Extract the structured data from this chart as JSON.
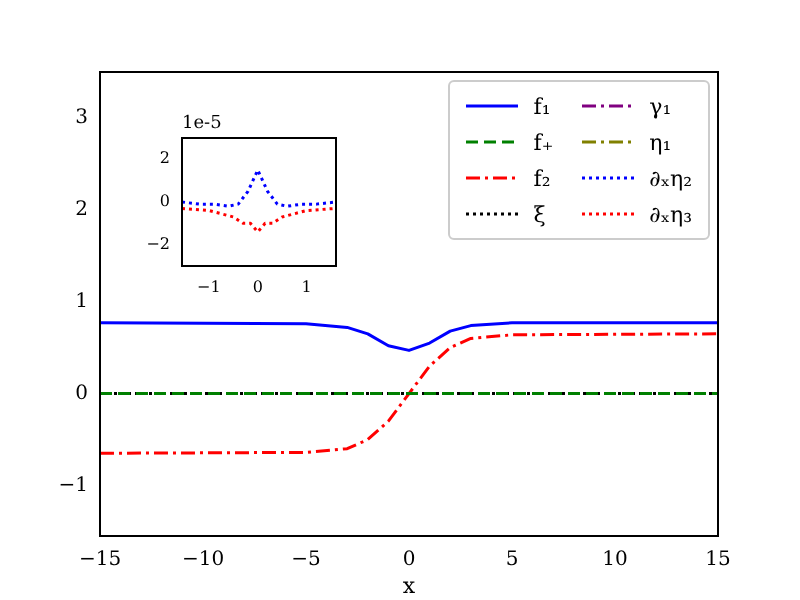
{
  "chart_data": [
    {
      "type": "line",
      "xlabel": "x",
      "xlim": [
        -15,
        15
      ],
      "xticks": [
        -15,
        -10,
        -5,
        0,
        5,
        10,
        15
      ],
      "ylim": [
        -1.55,
        3.5
      ],
      "yticks": [
        -1,
        0,
        1,
        2,
        3
      ],
      "grid": false,
      "legend": "top right",
      "marker": "none",
      "series": [
        {
          "name": "f₁",
          "color": "#0000ff",
          "line_style": "solid",
          "x": [
            -15,
            -5,
            -3,
            -2,
            -1,
            0,
            1,
            2,
            3,
            5,
            15
          ],
          "values": [
            0.77,
            0.76,
            0.72,
            0.65,
            0.52,
            0.47,
            0.55,
            0.68,
            0.74,
            0.77,
            0.77
          ]
        },
        {
          "name": "f₊",
          "color": "#008000",
          "line_style": "dashed",
          "x": [
            -15,
            15
          ],
          "values": [
            0,
            0
          ]
        },
        {
          "name": "f₂",
          "color": "#ff0000",
          "line_style": "dashdot",
          "x": [
            -15,
            -5,
            -3,
            -2,
            -1,
            0,
            1,
            2,
            3,
            5,
            15
          ],
          "values": [
            -0.65,
            -0.64,
            -0.6,
            -0.5,
            -0.3,
            0,
            0.3,
            0.5,
            0.6,
            0.64,
            0.65
          ]
        },
        {
          "name": "ξ",
          "color": "#000000",
          "line_style": "dotted",
          "x": [
            -15,
            15
          ],
          "values": [
            0,
            0
          ]
        },
        {
          "name": "γ₁",
          "color": "#800080",
          "line_style": "dashdot",
          "values": [
            null
          ]
        },
        {
          "name": "η₁",
          "color": "#808000",
          "line_style": "dashdot",
          "values": [
            null
          ]
        },
        {
          "name": "∂ₓη₂",
          "color": "#0000ff",
          "line_style": "dotted",
          "values": [
            null
          ]
        },
        {
          "name": "∂ₓη₃",
          "color": "#ff0000",
          "line_style": "dotted",
          "values": [
            null
          ]
        }
      ]
    },
    {
      "type": "line",
      "xlim": [
        -1.55,
        1.6
      ],
      "xticks": [
        -1,
        0,
        1
      ],
      "ylim": [
        -3,
        3
      ],
      "yticks": [
        -2,
        0,
        2
      ],
      "grid": false,
      "marker": "none",
      "annotations": [
        "1e-5"
      ],
      "series": [
        {
          "color": "#0000ff",
          "line_style": "dotted",
          "x": [
            -1.55,
            -1.2,
            -0.9,
            -0.6,
            -0.4,
            -0.2,
            -0.1,
            0,
            0.1,
            0.2,
            0.4,
            0.6,
            0.9,
            1.2,
            1.6
          ],
          "values": [
            0,
            -0.1,
            -0.1,
            -0.2,
            -0.1,
            0.5,
            1.0,
            1.5,
            1.0,
            0.5,
            -0.1,
            -0.2,
            -0.1,
            -0.1,
            0
          ]
        },
        {
          "color": "#ff0000",
          "line_style": "dotted",
          "x": [
            -1.55,
            -1.0,
            -0.5,
            -0.3,
            -0.15,
            0,
            0.15,
            0.3,
            0.5,
            1.0,
            1.6
          ],
          "values": [
            -0.3,
            -0.4,
            -0.7,
            -1.0,
            -1.0,
            -1.4,
            -1.0,
            -1.0,
            -0.7,
            -0.4,
            -0.3
          ]
        }
      ]
    }
  ]
}
